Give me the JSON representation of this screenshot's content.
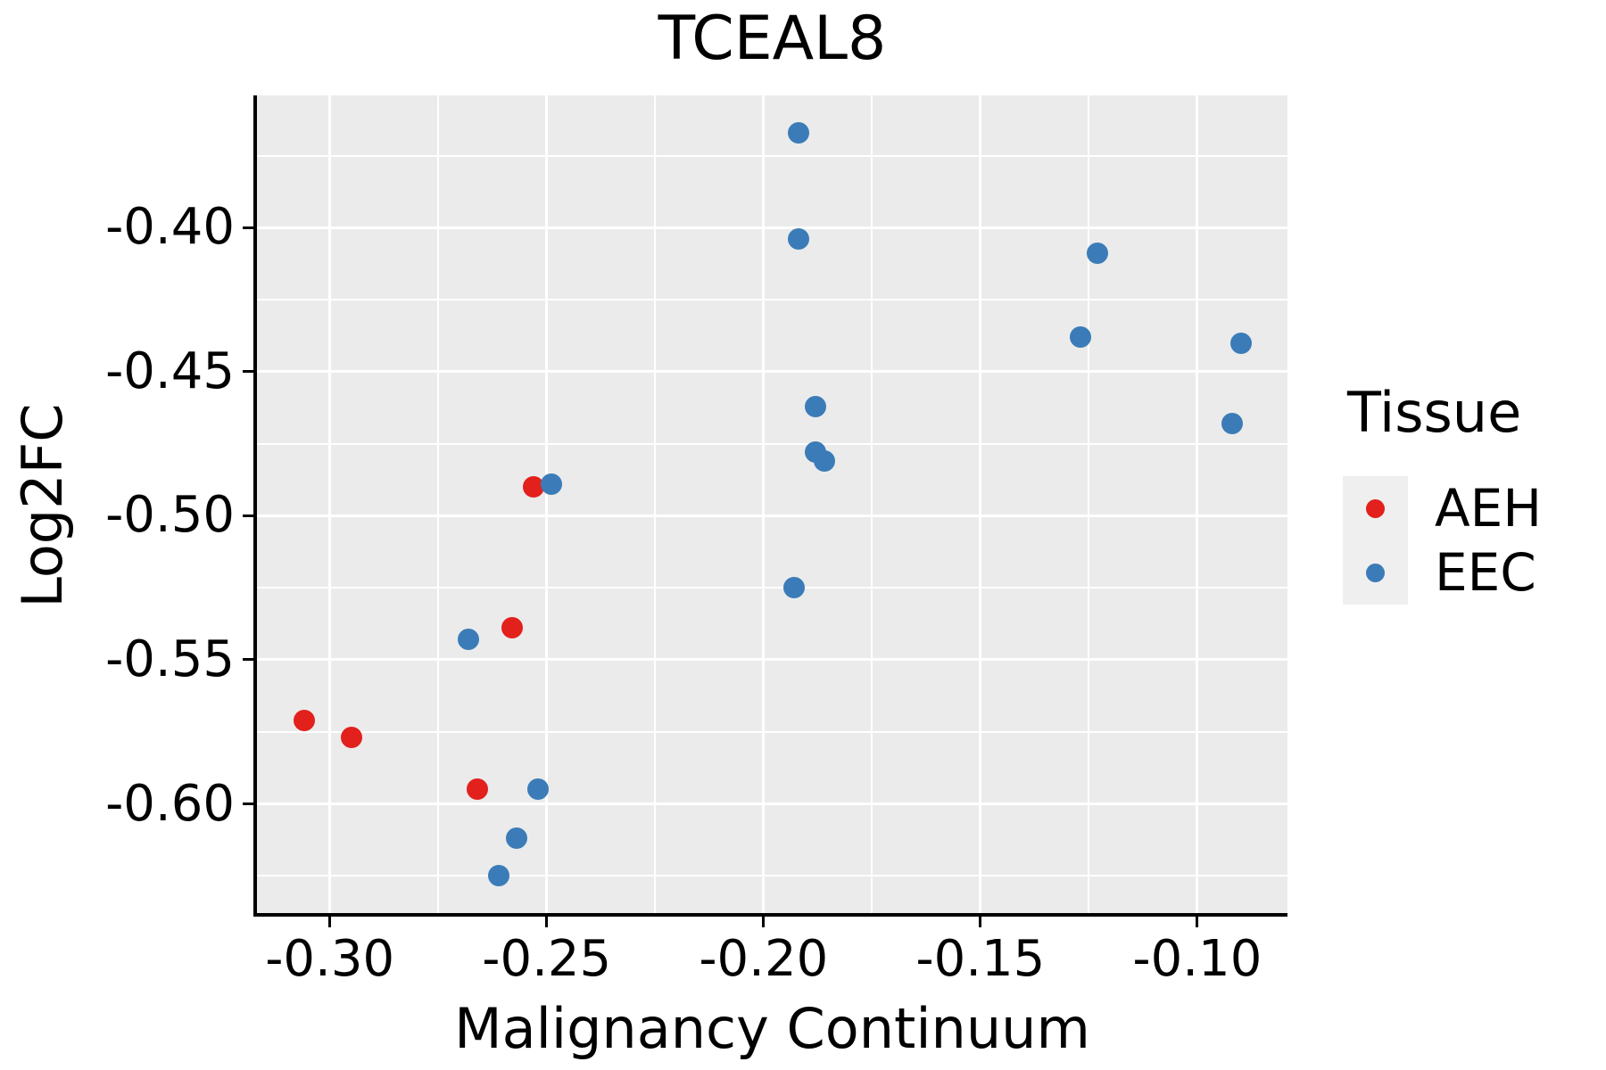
{
  "title": "TCEAL8",
  "axes": {
    "x_title": "Malignancy Continuum",
    "y_title": "Log2FC",
    "x_tick_labels": [
      "-0.30",
      "-0.25",
      "-0.20",
      "-0.15",
      "-0.10"
    ],
    "y_tick_labels": [
      "-0.40",
      "-0.45",
      "-0.50",
      "-0.55",
      "-0.60"
    ]
  },
  "legend": {
    "title": "Tissue",
    "entries": [
      {
        "label": "AEH",
        "color": "#E2201C"
      },
      {
        "label": "EEC",
        "color": "#3B7CB8"
      }
    ]
  },
  "colors": {
    "panel_background": "#EBEBEB",
    "gridline": "#FFFFFF",
    "axis_and_text": "#000000",
    "aeh": "#E2201C",
    "eec": "#3B7CB8"
  },
  "chart_data": {
    "type": "scatter",
    "title": "TCEAL8",
    "xlabel": "Malignancy Continuum",
    "ylabel": "Log2FC",
    "xlim": [
      -0.3168,
      -0.0792
    ],
    "ylim": [
      -0.6379,
      -0.3541
    ],
    "x_major_ticks": [
      -0.3,
      -0.25,
      -0.2,
      -0.15,
      -0.1
    ],
    "x_minor_gridlines": [
      -0.275,
      -0.225,
      -0.175,
      -0.125
    ],
    "y_major_ticks": [
      -0.4,
      -0.45,
      -0.5,
      -0.55,
      -0.6
    ],
    "y_minor_gridlines": [
      -0.375,
      -0.425,
      -0.475,
      -0.525,
      -0.575,
      -0.625
    ],
    "grid": "on",
    "legend_position": "right",
    "series": [
      {
        "name": "AEH",
        "color": "#E2201C",
        "points": [
          {
            "x": -0.306,
            "y": -0.571
          },
          {
            "x": -0.295,
            "y": -0.577
          },
          {
            "x": -0.266,
            "y": -0.595
          },
          {
            "x": -0.258,
            "y": -0.539
          },
          {
            "x": -0.253,
            "y": -0.49
          }
        ]
      },
      {
        "name": "EEC",
        "color": "#3B7CB8",
        "points": [
          {
            "x": -0.192,
            "y": -0.367
          },
          {
            "x": -0.192,
            "y": -0.404
          },
          {
            "x": -0.123,
            "y": -0.409
          },
          {
            "x": -0.127,
            "y": -0.438
          },
          {
            "x": -0.09,
            "y": -0.44
          },
          {
            "x": -0.092,
            "y": -0.468
          },
          {
            "x": -0.188,
            "y": -0.462
          },
          {
            "x": -0.188,
            "y": -0.478
          },
          {
            "x": -0.186,
            "y": -0.481
          },
          {
            "x": -0.249,
            "y": -0.489
          },
          {
            "x": -0.193,
            "y": -0.525
          },
          {
            "x": -0.268,
            "y": -0.543
          },
          {
            "x": -0.252,
            "y": -0.595
          },
          {
            "x": -0.257,
            "y": -0.612
          },
          {
            "x": -0.261,
            "y": -0.625
          }
        ]
      }
    ]
  }
}
